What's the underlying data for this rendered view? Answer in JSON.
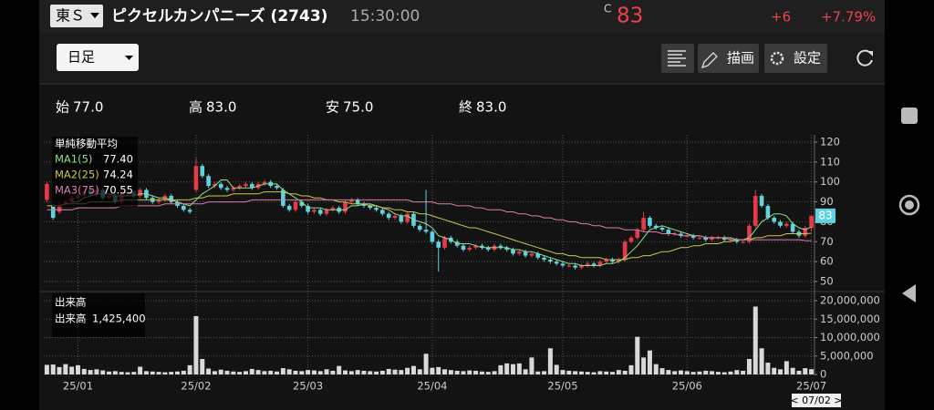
{
  "header": {
    "market": "東Ｓ",
    "name": "ピクセルカンパニーズ (2743)",
    "time": "15:30:00",
    "price_flag": "C",
    "price": 83,
    "change": "+6",
    "change_pct": "+7.79%"
  },
  "toolbar": {
    "period": "日足",
    "draw": "描画",
    "settings": "設定"
  },
  "ohlc": {
    "open": {
      "label": "始",
      "value": "77.0"
    },
    "high": {
      "label": "高",
      "value": "83.0"
    },
    "low": {
      "label": "安",
      "value": "75.0"
    },
    "close": {
      "label": "終",
      "value": "83.0"
    }
  },
  "footer": {
    "date": "< 07/02 >"
  },
  "chart_data": [
    {
      "type": "candlestick",
      "legend_title": "単純移動平均",
      "categories": [
        null,
        null,
        null,
        null,
        null,
        "25/01",
        null,
        null,
        null,
        null,
        null,
        null,
        null,
        null,
        null,
        null,
        null,
        null,
        null,
        null,
        null,
        null,
        null,
        null,
        "25/02",
        null,
        null,
        null,
        null,
        null,
        null,
        null,
        null,
        null,
        null,
        null,
        null,
        null,
        null,
        null,
        null,
        null,
        "25/03",
        null,
        null,
        null,
        null,
        null,
        null,
        null,
        null,
        null,
        null,
        null,
        null,
        null,
        null,
        null,
        null,
        null,
        null,
        null,
        "25/04",
        null,
        null,
        null,
        null,
        null,
        null,
        null,
        null,
        null,
        null,
        null,
        null,
        null,
        null,
        null,
        null,
        null,
        null,
        null,
        null,
        "25/05",
        null,
        null,
        null,
        null,
        null,
        null,
        null,
        null,
        null,
        null,
        null,
        null,
        null,
        null,
        null,
        null,
        null,
        null,
        null,
        "25/06",
        null,
        null,
        null,
        null,
        null,
        null,
        null,
        null,
        null,
        null,
        null,
        null,
        null,
        null,
        null,
        null,
        null,
        null,
        null,
        "25/07"
      ],
      "open": [
        91,
        88,
        85,
        89,
        90,
        92,
        93,
        96,
        94,
        96,
        92,
        93,
        90,
        94,
        95,
        93,
        96,
        92,
        90,
        91,
        93,
        90,
        88,
        86,
        96,
        108,
        103,
        98,
        99,
        97,
        96,
        97,
        98,
        99,
        97,
        99,
        100,
        98,
        96,
        88,
        86,
        90,
        88,
        85,
        86,
        84,
        86,
        87,
        85,
        90,
        91,
        89,
        88,
        87,
        86,
        84,
        82,
        83,
        80,
        84,
        78,
        76,
        75,
        70,
        67,
        72,
        70,
        68,
        66,
        67,
        68,
        67,
        66,
        68,
        67,
        66,
        64,
        65,
        63,
        64,
        62,
        61,
        60,
        59,
        58,
        58,
        57,
        58,
        59,
        58,
        60,
        61,
        60,
        61,
        70,
        72,
        76,
        82,
        78,
        77,
        76,
        74,
        74,
        73,
        73,
        72,
        72,
        71,
        72,
        72,
        71,
        71,
        70,
        70,
        78,
        93,
        88,
        82,
        80,
        78,
        79,
        75,
        73,
        77
      ],
      "high": [
        100,
        89,
        90,
        91,
        93,
        94,
        96,
        97,
        97,
        97,
        94,
        94,
        95,
        96,
        96,
        97,
        97,
        93,
        92,
        94,
        94,
        91,
        89,
        87,
        112,
        109,
        104,
        100,
        100,
        98,
        98,
        99,
        100,
        100,
        100,
        101,
        101,
        99,
        97,
        89,
        91,
        91,
        89,
        87,
        87,
        87,
        88,
        88,
        91,
        92,
        92,
        90,
        89,
        88,
        87,
        85,
        84,
        84,
        85,
        85,
        79,
        96,
        76,
        71,
        73,
        73,
        71,
        69,
        68,
        69,
        69,
        68,
        69,
        69,
        68,
        67,
        66,
        66,
        65,
        65,
        63,
        62,
        61,
        60,
        59,
        59,
        59,
        60,
        60,
        61,
        62,
        62,
        62,
        71,
        73,
        77,
        85,
        83,
        79,
        78,
        77,
        75,
        75,
        74,
        74,
        73,
        73,
        73,
        73,
        73,
        72,
        72,
        71,
        79,
        96,
        94,
        89,
        83,
        81,
        80,
        80,
        76,
        78,
        83
      ],
      "low": [
        90,
        81,
        84,
        88,
        89,
        91,
        92,
        93,
        93,
        91,
        91,
        89,
        89,
        93,
        92,
        92,
        91,
        89,
        89,
        90,
        89,
        87,
        85,
        84,
        95,
        102,
        97,
        97,
        96,
        95,
        95,
        96,
        97,
        96,
        96,
        98,
        97,
        96,
        87,
        85,
        85,
        87,
        84,
        84,
        83,
        83,
        85,
        84,
        84,
        89,
        88,
        87,
        86,
        85,
        83,
        81,
        81,
        79,
        79,
        77,
        75,
        74,
        69,
        55,
        66,
        69,
        67,
        65,
        65,
        66,
        66,
        65,
        65,
        66,
        65,
        63,
        63,
        62,
        62,
        61,
        60,
        59,
        58,
        57,
        57,
        56,
        56,
        57,
        57,
        57,
        59,
        59,
        59,
        60,
        69,
        71,
        75,
        77,
        76,
        75,
        73,
        73,
        72,
        72,
        71,
        71,
        70,
        70,
        71,
        70,
        70,
        69,
        69,
        69,
        77,
        87,
        81,
        79,
        77,
        77,
        74,
        72,
        72,
        75
      ],
      "close": [
        99,
        82,
        88,
        90,
        92,
        93,
        95,
        94,
        96,
        92,
        93,
        90,
        94,
        95,
        93,
        96,
        92,
        90,
        91,
        93,
        90,
        88,
        86,
        85,
        108,
        103,
        98,
        99,
        97,
        96,
        97,
        98,
        99,
        97,
        99,
        100,
        98,
        97,
        88,
        86,
        90,
        88,
        85,
        86,
        84,
        86,
        87,
        85,
        90,
        91,
        89,
        88,
        87,
        86,
        84,
        82,
        83,
        80,
        84,
        78,
        76,
        75,
        70,
        67,
        72,
        70,
        68,
        66,
        67,
        68,
        67,
        66,
        68,
        67,
        66,
        64,
        65,
        63,
        64,
        62,
        61,
        60,
        59,
        58,
        58,
        57,
        58,
        59,
        58,
        60,
        61,
        60,
        61,
        70,
        72,
        76,
        82,
        78,
        77,
        76,
        74,
        74,
        73,
        73,
        72,
        72,
        71,
        72,
        72,
        71,
        71,
        70,
        70,
        78,
        93,
        88,
        82,
        80,
        78,
        79,
        75,
        73,
        77,
        83
      ],
      "up_color": "#e8394a",
      "down_color": "#5fd3e0",
      "series": [
        {
          "name": "MA1(5)",
          "color": "#8fe08f",
          "last_label": "77.40",
          "values": [
            null,
            null,
            null,
            null,
            90,
            90,
            92,
            93,
            94,
            94,
            94,
            93,
            93,
            93,
            93,
            94,
            94,
            93,
            92,
            92,
            91,
            90,
            89,
            88,
            91,
            94,
            96,
            98,
            101,
            101,
            97,
            97,
            97,
            97,
            98,
            99,
            99,
            99,
            96,
            94,
            92,
            90,
            87,
            87,
            87,
            86,
            86,
            86,
            86,
            88,
            88,
            89,
            89,
            88,
            87,
            86,
            84,
            83,
            83,
            81,
            80,
            79,
            77,
            73,
            72,
            71,
            69,
            69,
            69,
            68,
            67,
            67,
            67,
            67,
            67,
            66,
            66,
            65,
            65,
            64,
            63,
            62,
            61,
            60,
            59,
            59,
            58,
            58,
            58,
            58,
            59,
            59,
            60,
            62,
            65,
            68,
            72,
            76,
            77,
            78,
            77,
            76,
            75,
            74,
            73,
            73,
            72,
            72,
            72,
            72,
            72,
            71,
            71,
            72,
            76,
            80,
            82,
            84,
            84,
            83,
            79,
            77,
            76,
            77.4
          ]
        },
        {
          "name": "MA2(25)",
          "color": "#c9c94a",
          "last_label": "74.24",
          "values": [
            88,
            88,
            88,
            89,
            89,
            89,
            89,
            90,
            90,
            90,
            90,
            90,
            91,
            91,
            91,
            91,
            91,
            91,
            91,
            91,
            91,
            91,
            91,
            91,
            92,
            92,
            93,
            93,
            93,
            93,
            94,
            94,
            94,
            94,
            94,
            95,
            95,
            95,
            95,
            94,
            94,
            93,
            93,
            92,
            92,
            91,
            91,
            90,
            90,
            89,
            89,
            89,
            88,
            88,
            87,
            87,
            86,
            86,
            85,
            85,
            84,
            84,
            83,
            82,
            81,
            80,
            79,
            78,
            77,
            77,
            76,
            75,
            74,
            73,
            72,
            71,
            70,
            69,
            68,
            67,
            66,
            65,
            64,
            64,
            63,
            63,
            62,
            62,
            62,
            62,
            61,
            61,
            61,
            61,
            62,
            62,
            63,
            63,
            64,
            65,
            65,
            66,
            67,
            67,
            68,
            68,
            69,
            69,
            69,
            70,
            70,
            71,
            71,
            71,
            72,
            72,
            73,
            73,
            73,
            74,
            74,
            74,
            74,
            74.24
          ]
        },
        {
          "name": "MA3(75)",
          "color": "#d97fb0",
          "last_label": "70.55",
          "values": [
            86,
            86,
            86,
            86,
            86,
            87,
            87,
            87,
            87,
            87,
            87,
            87,
            88,
            88,
            88,
            88,
            88,
            88,
            88,
            89,
            89,
            89,
            89,
            89,
            89,
            89,
            90,
            90,
            90,
            90,
            90,
            90,
            90,
            91,
            91,
            91,
            91,
            91,
            91,
            91,
            91,
            91,
            91,
            91,
            91,
            91,
            91,
            91,
            91,
            91,
            91,
            91,
            91,
            91,
            91,
            91,
            91,
            91,
            91,
            90,
            90,
            90,
            90,
            89,
            89,
            89,
            88,
            88,
            88,
            87,
            87,
            86,
            86,
            86,
            85,
            85,
            84,
            84,
            83,
            83,
            82,
            82,
            81,
            81,
            80,
            80,
            79,
            79,
            78,
            78,
            77,
            77,
            77,
            76,
            76,
            76,
            75,
            75,
            75,
            74,
            74,
            74,
            73,
            73,
            73,
            73,
            72,
            72,
            72,
            72,
            71,
            71,
            71,
            71,
            71,
            71,
            71,
            71,
            71,
            71,
            71,
            71,
            70.6,
            70.55
          ]
        }
      ],
      "ylim": [
        50,
        120
      ],
      "yticks": [
        50,
        60,
        70,
        80,
        90,
        100,
        110,
        120
      ],
      "last_price": 83,
      "grid": true
    },
    {
      "type": "bar",
      "legend_title": "出来高",
      "name": "出来高",
      "last_label": "1,425,400",
      "color": "#d9d9d9",
      "values": [
        2600000,
        2700000,
        2000000,
        2800000,
        2100000,
        2500000,
        1500000,
        1200000,
        1400000,
        1100000,
        800000,
        900000,
        700000,
        600000,
        700000,
        2100000,
        900000,
        800000,
        700000,
        600000,
        700000,
        800000,
        1000000,
        2500000,
        15800000,
        4200000,
        1600000,
        900000,
        1300000,
        1000000,
        800000,
        700000,
        900000,
        1500000,
        1200000,
        900000,
        1000000,
        800000,
        1700000,
        1400000,
        1000000,
        900000,
        1200000,
        1100000,
        900000,
        1400000,
        1000000,
        2300000,
        1100000,
        900000,
        1200000,
        1000000,
        900000,
        800000,
        1000000,
        1500000,
        1300000,
        1200000,
        1800000,
        2300000,
        1400000,
        5600000,
        1800000,
        2000000,
        1400000,
        1200000,
        1000000,
        900000,
        1100000,
        1000000,
        800000,
        700000,
        900000,
        2500000,
        3000000,
        2800000,
        3000000,
        1400000,
        4600000,
        800000,
        900000,
        7100000,
        2600000,
        1200000,
        1000000,
        900000,
        800000,
        700000,
        600000,
        900000,
        800000,
        700000,
        1200000,
        1000000,
        2500000,
        10200000,
        4600000,
        6500000,
        2800000,
        1700000,
        1200000,
        900000,
        1100000,
        900000,
        700000,
        800000,
        1000000,
        900000,
        700000,
        600000,
        800000,
        1200000,
        1000000,
        4200000,
        18400000,
        7100000,
        3200000,
        1800000,
        1400000,
        3600000,
        1800000,
        1000000,
        1700000,
        1425400
      ],
      "ylim": [
        0,
        20000000
      ],
      "yticks": [
        0,
        {
          "value": 5000000,
          "label": "5,000,000"
        },
        {
          "value": 10000000,
          "label": "10,000,000"
        },
        {
          "value": 15000000,
          "label": "15,000,000"
        },
        {
          "value": 20000000,
          "label": "20,000,000"
        }
      ],
      "grid": true
    }
  ]
}
